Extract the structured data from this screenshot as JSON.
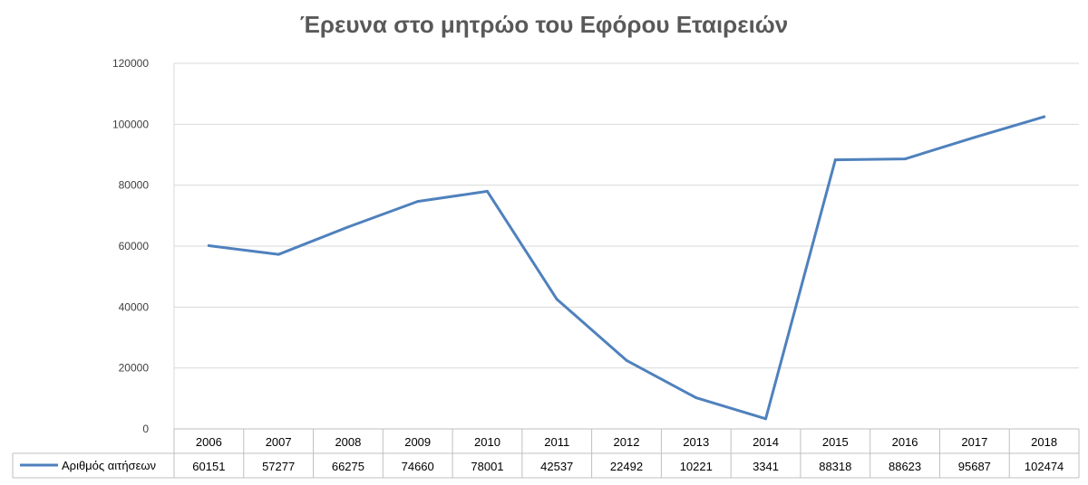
{
  "chart_data": {
    "type": "line",
    "title": "Έρευνα στο μητρώο του Εφόρου Εταιρειών",
    "categories": [
      "2006",
      "2007",
      "2008",
      "2009",
      "2010",
      "2011",
      "2012",
      "2013",
      "2014",
      "2015",
      "2016",
      "2017",
      "2018"
    ],
    "series": [
      {
        "name": "Αριθμός αιτήσεων",
        "values": [
          60151,
          57277,
          66275,
          74660,
          78001,
          42537,
          22492,
          10221,
          3341,
          88318,
          88623,
          95687,
          102474
        ],
        "color": "#4f81bd"
      }
    ],
    "ylim": [
      0,
      120000
    ],
    "yticks": [
      "0",
      "20000",
      "40000",
      "60000",
      "80000",
      "100000",
      "120000"
    ],
    "grid": true,
    "legend": "data-table"
  }
}
